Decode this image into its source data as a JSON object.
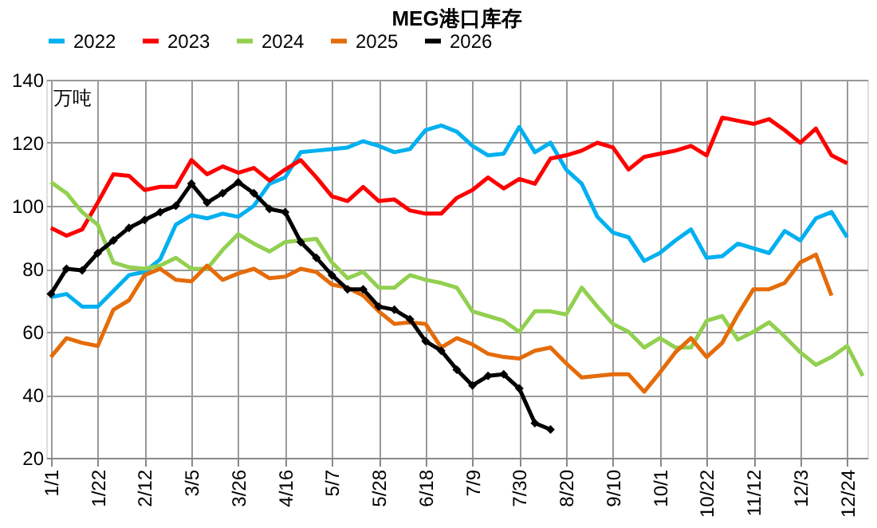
{
  "chart_data": {
    "type": "line",
    "title": "MEG港口库存",
    "ylabel": "万吨",
    "categories": [
      "1/1",
      null,
      null,
      "1/22",
      null,
      null,
      "2/12",
      null,
      null,
      "3/5",
      null,
      null,
      "3/26",
      null,
      null,
      "4/16",
      null,
      null,
      "5/7",
      null,
      null,
      "5/28",
      null,
      null,
      "6/18",
      null,
      null,
      "7/9",
      null,
      null,
      "7/30",
      null,
      null,
      "8/20",
      null,
      null,
      "9/10",
      null,
      null,
      "10/1",
      null,
      null,
      "10/22",
      null,
      null,
      "11/12",
      null,
      null,
      "12/3",
      null,
      null,
      "12/24",
      null
    ],
    "series": [
      {
        "name": "2022",
        "color": "#00b0f0",
        "values": [
          71,
          72,
          68,
          68,
          73,
          78,
          79,
          83,
          94,
          97,
          96,
          97.5,
          96.5,
          100,
          107,
          109,
          117,
          117.5,
          118,
          118.5,
          120.5,
          119,
          117,
          118,
          124,
          125.5,
          123.5,
          119,
          116,
          116.5,
          125,
          117,
          120,
          111.5,
          107,
          96.5,
          91.5,
          90,
          82.5,
          85,
          89,
          92.5,
          83.5,
          84,
          88,
          86.5,
          85,
          92,
          89,
          96,
          98,
          90,
          null
        ]
      },
      {
        "name": "2023",
        "color": "#ff0000",
        "values": [
          93,
          90.5,
          92.5,
          101,
          110,
          109.5,
          105,
          106,
          106,
          114.5,
          110,
          112.5,
          110.5,
          112,
          108,
          111.5,
          114.5,
          109,
          103,
          101.5,
          106,
          101.5,
          102,
          98.5,
          97.5,
          97.5,
          102.5,
          105,
          109,
          105.5,
          108.5,
          107,
          115,
          116,
          117.5,
          120,
          118.5,
          111.5,
          115.5,
          116.5,
          117.5,
          119,
          116,
          128,
          127,
          126,
          127.5,
          124,
          120,
          124.5,
          116,
          113.5,
          null
        ]
      },
      {
        "name": "2024",
        "color": "#92d050",
        "values": [
          107.5,
          104,
          98,
          94,
          82,
          80.5,
          80,
          81,
          83.5,
          80,
          80,
          86,
          91,
          88,
          85.5,
          88.5,
          89,
          89.5,
          82,
          77,
          79,
          74,
          74,
          78,
          76.5,
          75.5,
          74,
          66.5,
          65,
          63.5,
          60,
          66.5,
          66.5,
          65.5,
          74,
          68,
          62.5,
          60,
          55,
          58,
          55,
          55,
          63.5,
          65,
          57.5,
          60,
          63,
          58.5,
          53.5,
          49.5,
          52,
          55.5,
          46
        ]
      },
      {
        "name": "2025",
        "color": "#e46c0a",
        "values": [
          52,
          58,
          56.5,
          55.5,
          67,
          70,
          78,
          80,
          76.5,
          76,
          81,
          76.5,
          78.5,
          80,
          77,
          77.5,
          80,
          79,
          75,
          74,
          71.5,
          66.5,
          62.5,
          63,
          62.5,
          55,
          58,
          56,
          53,
          52,
          51.5,
          54,
          55,
          50,
          45.5,
          46,
          46.5,
          46.5,
          41,
          47,
          53.5,
          58,
          52,
          56.5,
          65.5,
          73.5,
          73.5,
          75.5,
          82,
          84.5,
          71.5,
          null,
          null
        ]
      },
      {
        "name": "2026",
        "color": "#000000",
        "marker": "diamond",
        "values": [
          72,
          80,
          79.5,
          85,
          89,
          93,
          95.5,
          98,
          100,
          107,
          101,
          104,
          107.5,
          104,
          99,
          98,
          88.5,
          83.5,
          78,
          73.5,
          73.5,
          68,
          67,
          64,
          57,
          54,
          48,
          43,
          46,
          46.5,
          42,
          31,
          29,
          null,
          null,
          null,
          null,
          null,
          null,
          null,
          null,
          null,
          null,
          null,
          null,
          null,
          null,
          null,
          null,
          null,
          null,
          null,
          null
        ]
      }
    ],
    "ylim": [
      20,
      140
    ],
    "yticks": [
      20,
      40,
      60,
      80,
      100,
      120,
      140
    ],
    "grid": true,
    "legend": "top"
  }
}
